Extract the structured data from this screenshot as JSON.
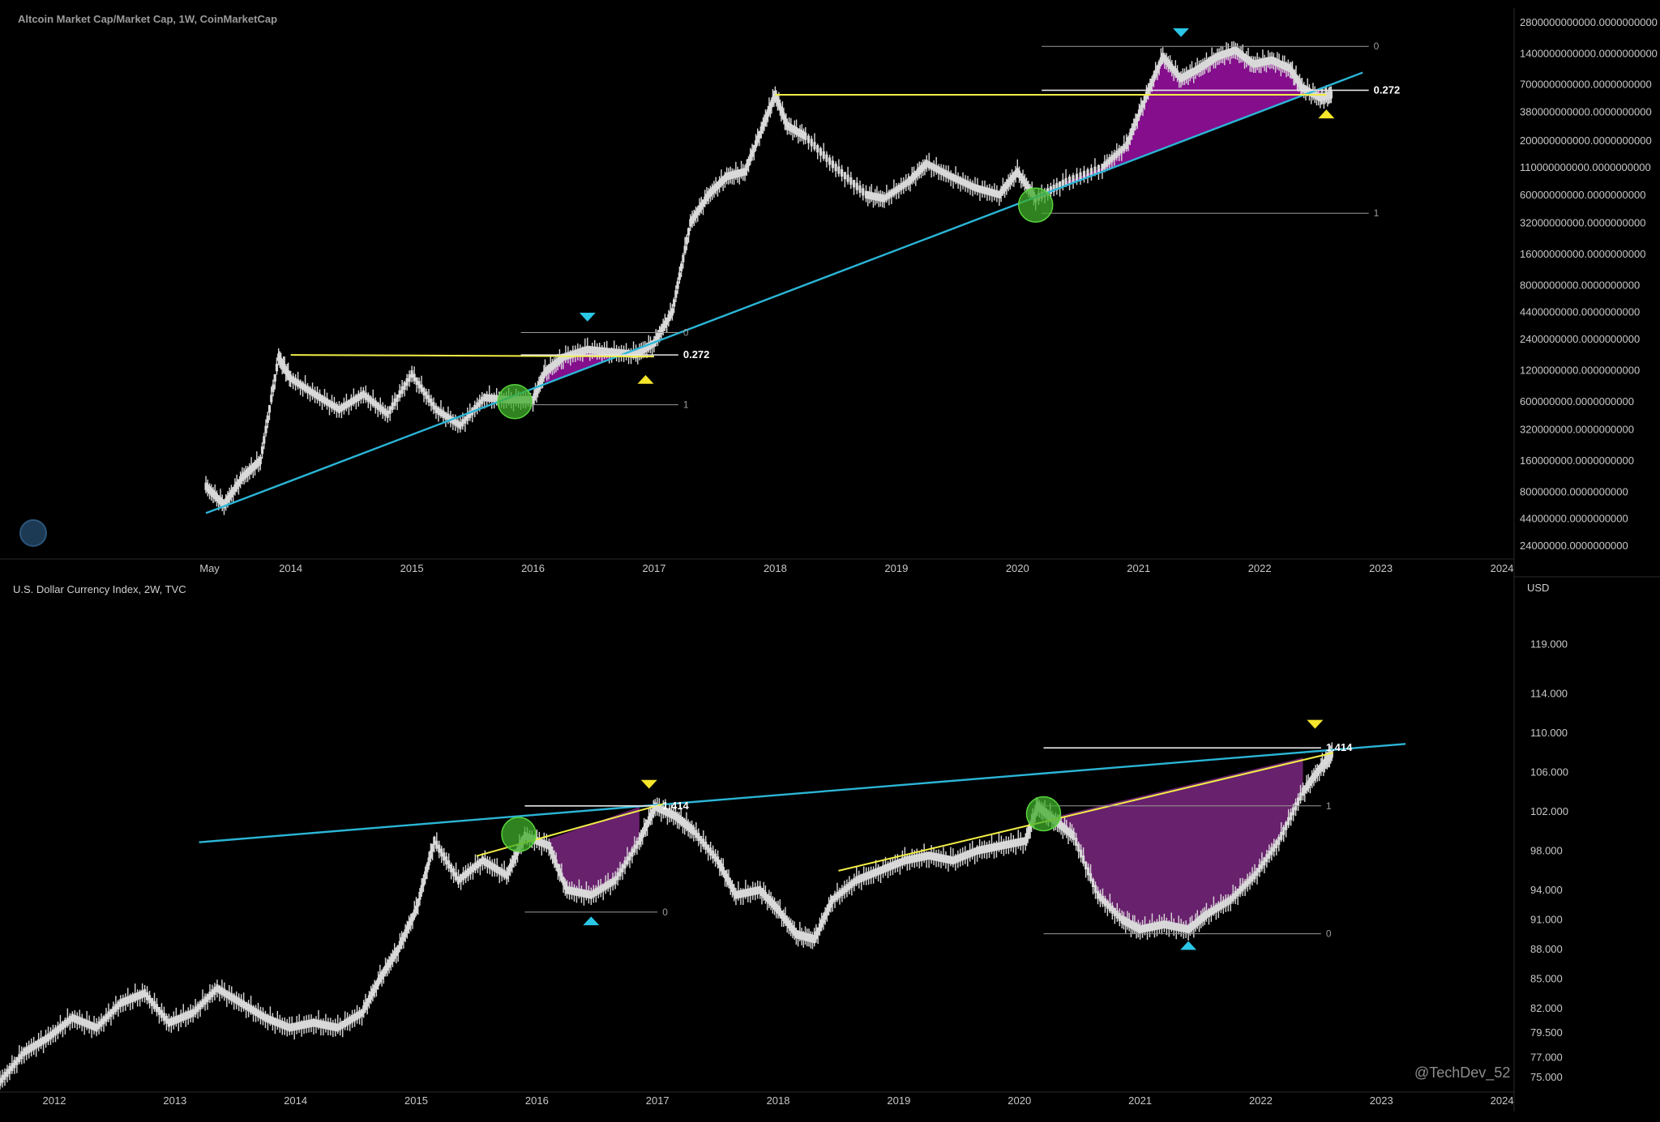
{
  "watermark": "@TechDev_52",
  "colors": {
    "background": "#000000",
    "candle": "#d9d9d9",
    "trendline": "#2bb5d6",
    "resistance": "#f2ee47",
    "fill": "#8b0f93",
    "fill_bottom": "#6e2372",
    "marker_green": "#3fae2a",
    "arrow_cyan": "#2bc7e6",
    "arrow_yellow": "#f5e62c"
  },
  "chart_data": [
    {
      "type": "line",
      "title": "Altcoin Market Cap/Market Cap, 1W, CoinMarketCap",
      "y_scale": "log",
      "y_tick_labels": [
        "2800000000000.0000000000",
        "1400000000000.0000000000",
        "700000000000.0000000000",
        "380000000000.0000000000",
        "200000000000.0000000000",
        "110000000000.0000000000",
        "60000000000.0000000000",
        "32000000000.0000000000",
        "16000000000.0000000000",
        "8000000000.0000000000",
        "4400000000.0000000000",
        "2400000000.0000000000",
        "1200000000.0000000000",
        "600000000.0000000000",
        "320000000.0000000000",
        "160000000.0000000000",
        "80000000.0000000000",
        "44000000.0000000000",
        "24000000.0000000000"
      ],
      "y_tick_values": [
        2800000000000,
        1400000000000,
        700000000000,
        380000000000,
        200000000000,
        110000000000,
        60000000000,
        32000000000,
        16000000000,
        8000000000,
        4400000000,
        2400000000,
        1200000000,
        600000000,
        320000000,
        160000000,
        80000000,
        44000000,
        24000000
      ],
      "x_tick_labels": [
        "May",
        "2014",
        "2015",
        "2016",
        "2017",
        "2018",
        "2019",
        "2020",
        "2021",
        "2022",
        "2023",
        "2024"
      ],
      "x_tick_values": [
        2013.33,
        2014.0,
        2015.0,
        2016.0,
        2017.0,
        2018.0,
        2019.0,
        2020.0,
        2021.0,
        2022.0,
        2023.0,
        2024.0
      ],
      "x_range": [
        2011.6,
        2024.1
      ],
      "y_range": [
        18000000,
        3600000000000
      ],
      "series": [
        {
          "x": [
            2013.3,
            2013.45,
            2013.6,
            2013.75,
            2013.9,
            2014.0,
            2014.2,
            2014.4,
            2014.6,
            2014.8,
            2015.0,
            2015.2,
            2015.4,
            2015.6,
            2015.8,
            2016.0,
            2016.1,
            2016.25,
            2016.45,
            2016.65,
            2016.85,
            2017.0,
            2017.15,
            2017.3,
            2017.45,
            2017.6,
            2017.75,
            2017.9,
            2018.0,
            2018.1,
            2018.25,
            2018.5,
            2018.75,
            2018.9,
            2019.1,
            2019.25,
            2019.45,
            2019.65,
            2019.85,
            2020.0,
            2020.15,
            2020.4,
            2020.7,
            2020.9,
            2021.05,
            2021.2,
            2021.35,
            2021.5,
            2021.65,
            2021.8,
            2021.95,
            2022.1,
            2022.25,
            2022.35,
            2022.5,
            2022.6
          ],
          "values": [
            90000000,
            60000000,
            110000000,
            160000000,
            1600000000,
            1000000000,
            700000000,
            500000000,
            700000000,
            450000000,
            1100000000,
            500000000,
            350000000,
            650000000,
            620000000,
            620000000,
            1150000000,
            1600000000,
            1900000000,
            1800000000,
            1700000000,
            2200000000,
            4400000000,
            32000000000,
            60000000000,
            90000000000,
            100000000000,
            280000000000,
            560000000000,
            280000000000,
            220000000000,
            110000000000,
            60000000000,
            55000000000,
            80000000000,
            120000000000,
            90000000000,
            70000000000,
            60000000000,
            100000000000,
            55000000000,
            80000000000,
            110000000000,
            180000000000,
            500000000000,
            1300000000000,
            800000000000,
            1000000000000,
            1300000000000,
            1500000000000,
            1100000000000,
            1200000000000,
            1000000000000,
            650000000000,
            520000000000,
            560000000000
          ]
        }
      ],
      "annotations": [
        {
          "type": "fib",
          "level_labels": [
            "0",
            "0.272",
            "1"
          ],
          "x": [
            2015.9,
            2017.2
          ],
          "levels": [
            2800000000,
            1700000000,
            560000000
          ]
        },
        {
          "type": "fib",
          "level_labels": [
            "0",
            "0.272",
            "1"
          ],
          "x": [
            2020.2,
            2022.9
          ],
          "levels": [
            1650000000000,
            620000000000,
            40000000000
          ]
        }
      ]
    },
    {
      "type": "line",
      "title": "U.S. Dollar Currency Index, 2W, TVC",
      "currency": "USD",
      "y_tick_labels": [
        "119.000",
        "114.000",
        "110.000",
        "106.000",
        "102.000",
        "98.000",
        "94.000",
        "91.000",
        "88.000",
        "85.000",
        "82.000",
        "79.500",
        "77.000",
        "75.000"
      ],
      "y_tick_values": [
        119.0,
        114.0,
        110.0,
        106.0,
        102.0,
        98.0,
        94.0,
        91.0,
        88.0,
        85.0,
        82.0,
        79.5,
        77.0,
        75.0
      ],
      "x_tick_labels": [
        "2012",
        "2013",
        "2014",
        "2015",
        "2016",
        "2017",
        "2018",
        "2019",
        "2020",
        "2021",
        "2022",
        "2023",
        "2024"
      ],
      "x_tick_values": [
        2012.0,
        2013.0,
        2014.0,
        2015.0,
        2016.0,
        2017.0,
        2018.0,
        2019.0,
        2020.0,
        2021.0,
        2022.0,
        2023.0,
        2024.0
      ],
      "x_range": [
        2011.55,
        2024.1
      ],
      "y_range": [
        73.5,
        124.0
      ],
      "series": [
        {
          "x": [
            2011.55,
            2011.75,
            2011.95,
            2012.15,
            2012.35,
            2012.55,
            2012.75,
            2012.95,
            2013.15,
            2013.35,
            2013.55,
            2013.75,
            2013.95,
            2014.15,
            2014.35,
            2014.55,
            2014.7,
            2014.85,
            2015.0,
            2015.15,
            2015.35,
            2015.55,
            2015.75,
            2015.9,
            2016.1,
            2016.25,
            2016.45,
            2016.65,
            2016.85,
            2016.98,
            2017.15,
            2017.3,
            2017.5,
            2017.65,
            2017.85,
            2018.0,
            2018.15,
            2018.3,
            2018.45,
            2018.65,
            2018.85,
            2019.05,
            2019.25,
            2019.45,
            2019.65,
            2019.85,
            2020.05,
            2020.15,
            2020.3,
            2020.45,
            2020.65,
            2020.85,
            2021.0,
            2021.2,
            2021.4,
            2021.55,
            2021.75,
            2021.95,
            2022.15,
            2022.35,
            2022.5,
            2022.6
          ],
          "values": [
            74.5,
            77.5,
            79.0,
            81.0,
            80.0,
            82.5,
            83.5,
            80.5,
            81.5,
            84.0,
            82.5,
            81.0,
            80.0,
            80.5,
            80.0,
            81.5,
            85.0,
            88.0,
            92.0,
            99.0,
            95.0,
            97.0,
            95.5,
            99.5,
            98.5,
            94.0,
            93.5,
            95.0,
            99.0,
            102.5,
            101.5,
            100.0,
            97.0,
            93.5,
            94.0,
            92.0,
            89.5,
            89.0,
            93.0,
            95.0,
            96.0,
            97.0,
            97.5,
            97.0,
            98.0,
            98.5,
            99.0,
            102.5,
            101.0,
            99.5,
            93.5,
            91.0,
            90.0,
            90.5,
            90.0,
            91.5,
            93.0,
            95.5,
            99.0,
            104.0,
            106.5,
            108.0
          ]
        }
      ],
      "annotations": [
        {
          "type": "fib",
          "level_labels": [
            "1.414",
            "0"
          ],
          "x": [
            2015.9,
            2017.0
          ],
          "levels": [
            102.6,
            91.8
          ]
        },
        {
          "type": "fib",
          "level_labels": [
            "1.414",
            "1",
            "0"
          ],
          "x": [
            2020.2,
            2022.5
          ],
          "levels": [
            108.5,
            102.6,
            89.6
          ]
        }
      ]
    }
  ]
}
